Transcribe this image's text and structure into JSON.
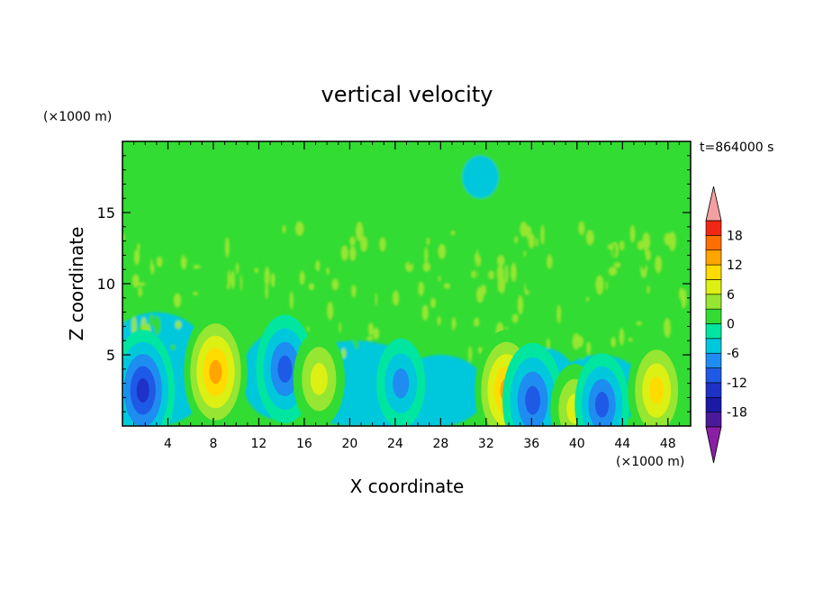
{
  "chart_data": {
    "type": "heatmap",
    "title": "vertical velocity",
    "xlabel": "X coordinate",
    "ylabel": "Z coordinate",
    "x_unit": "(×1000 m)",
    "y_unit": "(×1000 m)",
    "time_label": "t=864000 s",
    "xlim": [
      0,
      50
    ],
    "ylim": [
      0,
      20
    ],
    "x_ticks": [
      4,
      8,
      12,
      16,
      20,
      24,
      28,
      32,
      36,
      40,
      44,
      48
    ],
    "y_ticks": [
      5,
      10,
      15
    ],
    "colorbar": {
      "ticks": [
        18,
        12,
        6,
        0,
        -6,
        -12,
        -18
      ],
      "levels": [
        -21,
        -18,
        -15,
        -12,
        -9,
        -6,
        -3,
        0,
        3,
        6,
        9,
        12,
        15,
        18,
        21
      ],
      "colors": [
        "#8a1fa6",
        "#4b1a9a",
        "#1a1aa6",
        "#1e32c8",
        "#1e5ae6",
        "#1e8cf0",
        "#00c8dc",
        "#00e6a0",
        "#32dc32",
        "#96e632",
        "#dcf014",
        "#ffdc00",
        "#ffa500",
        "#ff6e00",
        "#f02814",
        "#f5a0a0"
      ]
    },
    "features": [
      {
        "x": 1.8,
        "z": 2.5,
        "w": -13
      },
      {
        "x": 8.2,
        "z": 3.8,
        "w": 13
      },
      {
        "x": 14.3,
        "z": 4.0,
        "w": -11
      },
      {
        "x": 17.3,
        "z": 3.3,
        "w": 9
      },
      {
        "x": 24.5,
        "z": 3.0,
        "w": -8
      },
      {
        "x": 33.8,
        "z": 2.5,
        "w": 13
      },
      {
        "x": 36.1,
        "z": 1.8,
        "w": -12
      },
      {
        "x": 39.8,
        "z": 1.2,
        "w": 8
      },
      {
        "x": 42.2,
        "z": 1.5,
        "w": -10
      },
      {
        "x": 47.0,
        "z": 2.5,
        "w": 11
      }
    ]
  }
}
